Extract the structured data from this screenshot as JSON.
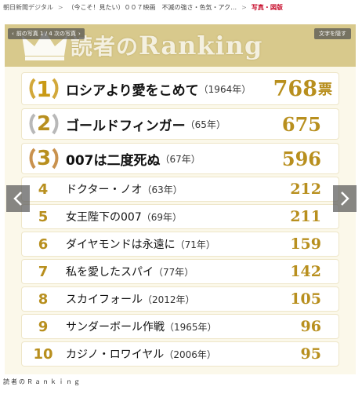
{
  "breadcrumb": {
    "items": [
      "朝日新聞デジタル",
      "（今こそ！見たい）００７映画　不滅の強さ・色気・アク…",
      "写真・図版"
    ]
  },
  "slideshow": {
    "prev_label": "前の写真",
    "counter": "1 / 4",
    "next_label": "次の写真",
    "text_toggle": "文字を隠す"
  },
  "header": {
    "title_part1": "読者の",
    "title_part2": "Ranking"
  },
  "ranking": [
    {
      "rank": "1",
      "title": "ロシアより愛をこめて",
      "year": "（1964年）",
      "votes": "768",
      "unit": "票",
      "medal": "gold"
    },
    {
      "rank": "2",
      "title": "ゴールドフィンガー",
      "year": "（65年）",
      "votes": "675",
      "unit": "",
      "medal": "silver"
    },
    {
      "rank": "3",
      "title": "007は二度死ぬ",
      "year": "（67年）",
      "votes": "596",
      "unit": "",
      "medal": "bronze"
    },
    {
      "rank": "4",
      "title": "ドクター・ノオ",
      "year": "（63年）",
      "votes": "212",
      "unit": ""
    },
    {
      "rank": "5",
      "title": "女王陛下の007",
      "year": "（69年）",
      "votes": "211",
      "unit": ""
    },
    {
      "rank": "6",
      "title": "ダイヤモンドは永遠に",
      "year": "（71年）",
      "votes": "159",
      "unit": ""
    },
    {
      "rank": "7",
      "title": "私を愛したスパイ",
      "year": "（77年）",
      "votes": "142",
      "unit": ""
    },
    {
      "rank": "8",
      "title": "スカイフォール",
      "year": "（2012年）",
      "votes": "105",
      "unit": ""
    },
    {
      "rank": "9",
      "title": "サンダーボール作戦",
      "year": "（1965年）",
      "votes": "96",
      "unit": ""
    },
    {
      "rank": "10",
      "title": "カジノ・ロワイヤル",
      "year": "（2006年）",
      "votes": "95",
      "unit": ""
    }
  ],
  "caption": "読者のＲａｎｋｉｎｇ",
  "colors": {
    "accent_gold": "#b88f1e",
    "header_band": "#d8c98c",
    "background": "#fbf8ea",
    "breadcrumb_current": "#c8102e"
  }
}
